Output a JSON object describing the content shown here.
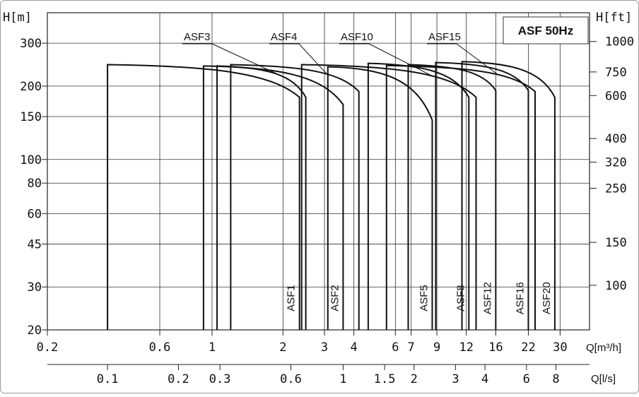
{
  "chart_data": {
    "type": "line",
    "title": "ASF 50Hz",
    "title_color": "#1f6fb5",
    "left_axis": {
      "label": "H[m]",
      "scale": "log",
      "range": [
        20,
        400
      ],
      "ticks": [
        "300",
        "200",
        "150",
        "100",
        "80",
        "60",
        "45",
        "30",
        "20"
      ]
    },
    "right_axis": {
      "label": "H[ft]",
      "ticks": [
        "1000",
        "750",
        "600",
        "400",
        "320",
        "250",
        "150",
        "100"
      ]
    },
    "x_axis": {
      "label": "Q[m³/h]",
      "scale": "log",
      "range": [
        0.2,
        40
      ],
      "ticks": [
        "0.2",
        "0.6",
        "1",
        "2",
        "3",
        "4",
        "6",
        "7",
        "9",
        "12",
        "16",
        "22",
        "30"
      ]
    },
    "x2_axis": {
      "label": "Q[l/s]",
      "ticks": [
        "0.1",
        "0.2",
        "0.3",
        "0.6",
        "1",
        "1.5",
        "2",
        "3",
        "4",
        "6",
        "8"
      ]
    },
    "grid": true,
    "series": [
      {
        "name": "ASF1",
        "type": "vertical",
        "label_pos": "vertical",
        "x": [
          0.36,
          2.35
        ],
        "peak": 245,
        "end": 180,
        "bottom": 20
      },
      {
        "name": "ASF2",
        "type": "vertical",
        "label_pos": "vertical",
        "x": [
          0.92,
          3.6
        ],
        "peak": 242,
        "end": 168,
        "bottom": 20
      },
      {
        "name": "ASF5",
        "type": "vertical",
        "label_pos": "vertical",
        "x": [
          3.1,
          8.6
        ],
        "peak": 240,
        "end": 145,
        "bottom": 20
      },
      {
        "name": "ASF8",
        "type": "vertical",
        "label_pos": "vertical",
        "x": [
          4.6,
          12.3
        ],
        "peak": 248,
        "end": 180,
        "bottom": 20
      },
      {
        "name": "ASF12",
        "type": "vertical",
        "label_pos": "vertical",
        "x": [
          6.8,
          16.0
        ],
        "peak": 245,
        "end": 192,
        "bottom": 20
      },
      {
        "name": "ASF16",
        "type": "vertical",
        "label_pos": "vertical",
        "x": [
          8.9,
          22.0
        ],
        "peak": 250,
        "end": 192,
        "bottom": 20
      },
      {
        "name": "ASF20",
        "type": "vertical",
        "label_pos": "vertical",
        "x": [
          11.5,
          28.5
        ],
        "peak": 252,
        "end": 180,
        "bottom": 20
      },
      {
        "name": "ASF3",
        "type": "leader",
        "x": [
          1.05,
          2.5
        ],
        "peak": 242,
        "end": 180,
        "bottom": 20
      },
      {
        "name": "ASF4",
        "type": "leader",
        "x": [
          1.2,
          4.2
        ],
        "peak": 245,
        "end": 190,
        "bottom": 20
      },
      {
        "name": "ASF10",
        "type": "leader",
        "x": [
          2.4,
          13.2
        ],
        "peak": 245,
        "end": 180,
        "bottom": 20
      },
      {
        "name": "ASF15",
        "type": "leader",
        "x": [
          5.5,
          23.5
        ],
        "peak": 243,
        "end": 190,
        "bottom": 20
      }
    ]
  }
}
